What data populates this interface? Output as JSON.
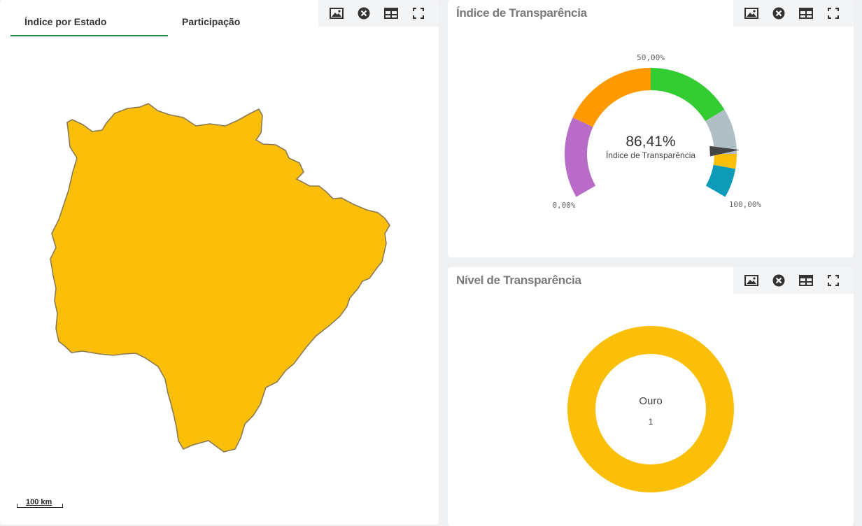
{
  "map_panel": {
    "tabs": [
      {
        "label": "Índice por Estado",
        "active": true
      },
      {
        "label": "Participação",
        "active": false
      }
    ],
    "scale_label": "100 km",
    "region_fill": "#fbbf0a",
    "toolbar": [
      "image-icon",
      "close-circle-icon",
      "table-icon",
      "fullscreen-icon"
    ]
  },
  "index_panel": {
    "title": "Índice de Transparência",
    "gauge": {
      "value_text": "86,41%",
      "subtitle": "Índice de Transparência",
      "min_label": "0,00%",
      "mid_label": "50,00%",
      "max_label": "100,00%",
      "value_fraction": 0.8641,
      "segment_colors": [
        "#b96bc8",
        "#ff9900",
        "#33cc33",
        "#b0bec5",
        "#fbbf0a",
        "#0e9bb8"
      ]
    }
  },
  "level_panel": {
    "title": "Nível de Transparência",
    "donut": {
      "label": "Ouro",
      "count": "1",
      "color": "#fbbf0a"
    }
  },
  "colors": {
    "accent": "#1d8a4e",
    "title": "#7a7a7a",
    "toolbar_bg": "#f3f4f5"
  }
}
